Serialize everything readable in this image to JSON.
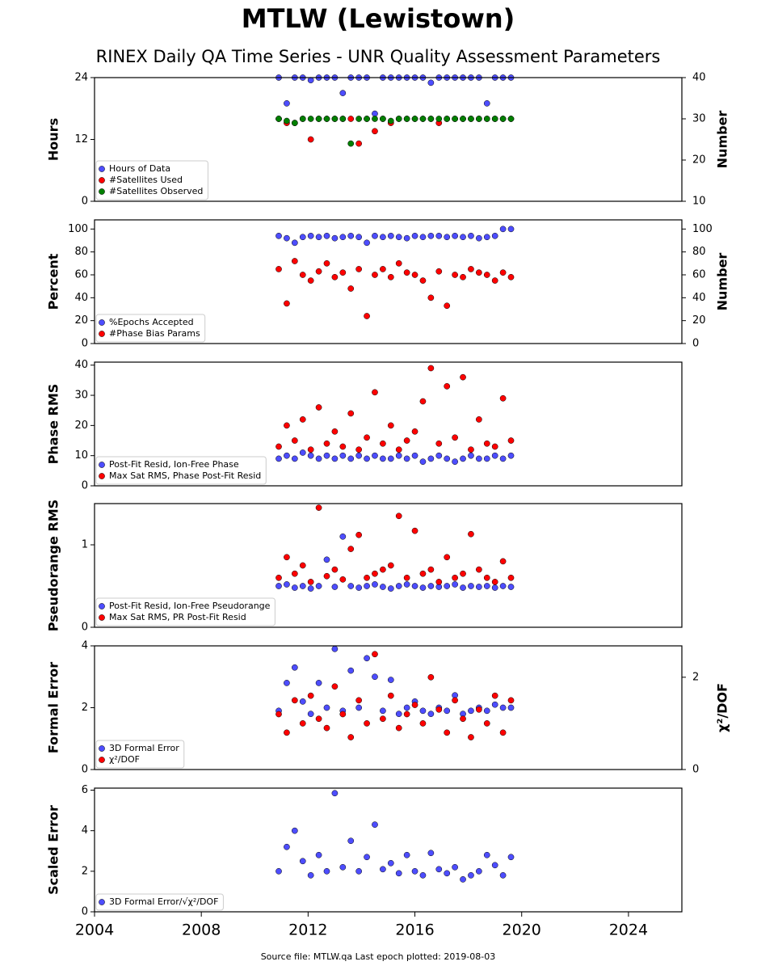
{
  "title": "MTLW (Lewistown)",
  "subtitle": "RINEX Daily QA Time Series - UNR Quality Assessment Parameters",
  "footer": "Source file: MTLW.qa Last epoch plotted: 2019-08-03",
  "chart_data": [
    {
      "type": "scatter",
      "ylabel": "Hours",
      "y2label": "Number",
      "legend": "lower left",
      "x": [
        2010.9,
        2011.2,
        2011.5,
        2011.8,
        2012.1,
        2012.4,
        2012.7,
        2013.0,
        2013.3,
        2013.6,
        2013.9,
        2014.2,
        2014.5,
        2014.8,
        2015.1,
        2015.4,
        2015.7,
        2016.0,
        2016.3,
        2016.6,
        2016.9,
        2017.2,
        2017.5,
        2017.8,
        2018.1,
        2018.4,
        2018.7,
        2019.0,
        2019.3,
        2019.6
      ],
      "xlim": [
        2004,
        2026
      ],
      "ylim": [
        0,
        24
      ],
      "yticks": [
        0,
        12,
        24
      ],
      "y2lim": [
        10,
        40
      ],
      "y2ticks": [
        10,
        20,
        30,
        40
      ],
      "series": [
        {
          "name": "Hours of Data",
          "color": "#4d4dff",
          "values": [
            24,
            19,
            24,
            24,
            23.5,
            24,
            24,
            24,
            21,
            24,
            24,
            24,
            17,
            24,
            24,
            24,
            24,
            24,
            24,
            23,
            24,
            24,
            24,
            24,
            24,
            24,
            19,
            24,
            24,
            24
          ]
        },
        {
          "name": "#Satellites Used",
          "color": "#ff0000",
          "axis": "y2",
          "values": [
            30,
            29,
            29,
            30,
            25,
            30,
            30,
            30,
            30,
            30,
            24,
            30,
            27,
            30,
            29,
            30,
            30,
            30,
            30,
            30,
            29,
            30,
            30,
            30,
            30,
            30,
            30,
            30,
            30,
            30
          ]
        },
        {
          "name": "#Satellites Observed",
          "color": "#008000",
          "axis": "y2",
          "values": [
            30,
            29.5,
            29,
            30,
            30,
            30,
            30,
            30,
            30,
            24,
            30,
            30,
            30,
            30,
            29.5,
            30,
            30,
            30,
            30,
            30,
            30,
            30,
            30,
            30,
            30,
            30,
            30,
            30,
            30,
            30
          ]
        }
      ]
    },
    {
      "type": "scatter",
      "ylabel": "Percent",
      "y2label": "Number",
      "legend": "lower left",
      "x": [
        2010.9,
        2011.2,
        2011.5,
        2011.8,
        2012.1,
        2012.4,
        2012.7,
        2013.0,
        2013.3,
        2013.6,
        2013.9,
        2014.2,
        2014.5,
        2014.8,
        2015.1,
        2015.4,
        2015.7,
        2016.0,
        2016.3,
        2016.6,
        2016.9,
        2017.2,
        2017.5,
        2017.8,
        2018.1,
        2018.4,
        2018.7,
        2019.0,
        2019.3,
        2019.6
      ],
      "xlim": [
        2004,
        2026
      ],
      "ylim": [
        0,
        108
      ],
      "yticks": [
        0,
        20,
        40,
        60,
        80,
        100
      ],
      "y2lim": [
        0,
        108
      ],
      "y2ticks": [
        0,
        20,
        40,
        60,
        80,
        100
      ],
      "series": [
        {
          "name": "%Epochs Accepted",
          "color": "#4d4dff",
          "values": [
            94,
            92,
            88,
            93,
            94,
            93,
            94,
            92,
            93,
            94,
            93,
            88,
            94,
            93,
            94,
            93,
            92,
            94,
            93,
            94,
            94,
            93,
            94,
            93,
            94,
            92,
            93,
            94,
            100,
            100
          ]
        },
        {
          "name": "#Phase Bias Params",
          "color": "#ff0000",
          "axis": "y2",
          "values": [
            65,
            35,
            72,
            60,
            55,
            63,
            70,
            58,
            62,
            48,
            65,
            24,
            60,
            65,
            58,
            70,
            62,
            60,
            55,
            40,
            63,
            33,
            60,
            58,
            65,
            62,
            60,
            55,
            62,
            58
          ]
        }
      ]
    },
    {
      "type": "scatter",
      "ylabel": "Phase RMS",
      "legend": "lower left",
      "x": [
        2010.9,
        2011.2,
        2011.5,
        2011.8,
        2012.1,
        2012.4,
        2012.7,
        2013.0,
        2013.3,
        2013.6,
        2013.9,
        2014.2,
        2014.5,
        2014.8,
        2015.1,
        2015.4,
        2015.7,
        2016.0,
        2016.3,
        2016.6,
        2016.9,
        2017.2,
        2017.5,
        2017.8,
        2018.1,
        2018.4,
        2018.7,
        2019.0,
        2019.3,
        2019.6
      ],
      "xlim": [
        2004,
        2026
      ],
      "ylim": [
        0,
        41
      ],
      "yticks": [
        0,
        10,
        20,
        30,
        40
      ],
      "series": [
        {
          "name": "Post-Fit Resid, Ion-Free Phase",
          "color": "#4d4dff",
          "values": [
            9,
            10,
            9,
            11,
            10,
            9,
            10,
            9,
            10,
            9,
            10,
            9,
            10,
            9,
            9,
            10,
            9,
            10,
            8,
            9,
            10,
            9,
            8,
            9,
            10,
            9,
            9,
            10,
            9,
            10
          ]
        },
        {
          "name": "Max Sat RMS, Phase Post-Fit Resid",
          "color": "#ff0000",
          "values": [
            13,
            20,
            15,
            22,
            12,
            26,
            14,
            18,
            13,
            24,
            12,
            16,
            31,
            14,
            20,
            12,
            15,
            18,
            28,
            39,
            14,
            33,
            16,
            36,
            12,
            22,
            14,
            13,
            29,
            15
          ]
        }
      ]
    },
    {
      "type": "scatter",
      "ylabel": "Pseudorange RMS",
      "legend": "lower left",
      "x": [
        2010.9,
        2011.2,
        2011.5,
        2011.8,
        2012.1,
        2012.4,
        2012.7,
        2013.0,
        2013.3,
        2013.6,
        2013.9,
        2014.2,
        2014.5,
        2014.8,
        2015.1,
        2015.4,
        2015.7,
        2016.0,
        2016.3,
        2016.6,
        2016.9,
        2017.2,
        2017.5,
        2017.8,
        2018.1,
        2018.4,
        2018.7,
        2019.0,
        2019.3,
        2019.6
      ],
      "xlim": [
        2004,
        2026
      ],
      "ylim": [
        0,
        1.5
      ],
      "yticks": [
        0,
        1
      ],
      "series": [
        {
          "name": "Post-Fit Resid, Ion-Free Pseudorange",
          "color": "#4d4dff",
          "values": [
            0.5,
            0.52,
            0.48,
            0.5,
            0.47,
            0.5,
            0.82,
            0.49,
            1.1,
            0.5,
            0.48,
            0.5,
            0.52,
            0.49,
            0.47,
            0.5,
            0.52,
            0.5,
            0.48,
            0.5,
            0.49,
            0.5,
            0.52,
            0.48,
            0.5,
            0.49,
            0.5,
            0.48,
            0.5,
            0.49
          ]
        },
        {
          "name": "Max Sat RMS, PR Post-Fit Resid",
          "color": "#ff0000",
          "values": [
            0.6,
            0.85,
            0.65,
            0.75,
            0.55,
            1.45,
            0.62,
            0.7,
            0.58,
            0.95,
            1.12,
            0.6,
            0.65,
            0.7,
            0.75,
            1.35,
            0.6,
            1.17,
            0.65,
            0.7,
            0.55,
            0.85,
            0.6,
            0.65,
            1.13,
            0.7,
            0.6,
            0.55,
            0.8,
            0.6
          ]
        }
      ]
    },
    {
      "type": "scatter",
      "ylabel": "Formal Error",
      "y2label": "χ²/DOF",
      "legend": "lower left",
      "x": [
        2010.9,
        2011.2,
        2011.5,
        2011.8,
        2012.1,
        2012.4,
        2012.7,
        2013.0,
        2013.3,
        2013.6,
        2013.9,
        2014.2,
        2014.5,
        2014.8,
        2015.1,
        2015.4,
        2015.7,
        2016.0,
        2016.3,
        2016.6,
        2016.9,
        2017.2,
        2017.5,
        2017.8,
        2018.1,
        2018.4,
        2018.7,
        2019.0,
        2019.3,
        2019.6
      ],
      "xlim": [
        2004,
        2026
      ],
      "ylim": [
        0,
        4
      ],
      "yticks": [
        0,
        2,
        4
      ],
      "y2lim": [
        0,
        2.68
      ],
      "y2ticks": [
        0,
        2
      ],
      "series": [
        {
          "name": "3D Formal Error",
          "color": "#4d4dff",
          "values": [
            1.9,
            2.8,
            3.3,
            2.2,
            1.8,
            2.8,
            2.0,
            3.9,
            1.9,
            3.2,
            2.0,
            3.6,
            3.0,
            1.9,
            2.9,
            1.8,
            2.0,
            2.2,
            1.9,
            1.8,
            2.0,
            1.9,
            2.4,
            1.8,
            1.9,
            2.0,
            1.9,
            2.1,
            2.0,
            2.0
          ]
        },
        {
          "name": "χ²/DOF",
          "color": "#ff0000",
          "axis": "y2",
          "values": [
            1.2,
            0.8,
            1.5,
            1.0,
            1.6,
            1.1,
            0.9,
            1.8,
            1.2,
            0.7,
            1.5,
            1.0,
            2.5,
            1.1,
            1.6,
            0.9,
            1.2,
            1.4,
            1.0,
            2.0,
            1.3,
            0.8,
            1.5,
            1.1,
            0.7,
            1.3,
            1.0,
            1.6,
            0.8,
            1.5
          ]
        }
      ]
    },
    {
      "type": "scatter",
      "ylabel": "Scaled Error",
      "legend": "lower left",
      "x": [
        2010.9,
        2011.2,
        2011.5,
        2011.8,
        2012.1,
        2012.4,
        2012.7,
        2013.0,
        2013.3,
        2013.6,
        2013.9,
        2014.2,
        2014.5,
        2014.8,
        2015.1,
        2015.4,
        2015.7,
        2016.0,
        2016.3,
        2016.6,
        2016.9,
        2017.2,
        2017.5,
        2017.8,
        2018.1,
        2018.4,
        2018.7,
        2019.0,
        2019.3,
        2019.6
      ],
      "xlim": [
        2004,
        2026
      ],
      "xticks": [
        2004,
        2008,
        2012,
        2016,
        2020,
        2024
      ],
      "ylim": [
        0,
        6.1
      ],
      "yticks": [
        0,
        2,
        4,
        6
      ],
      "series": [
        {
          "name": "3D Formal Error/√χ²/DOF",
          "color": "#4d4dff",
          "values": [
            2.0,
            3.2,
            4.0,
            2.5,
            1.8,
            2.8,
            2.0,
            5.85,
            2.2,
            3.5,
            2.0,
            2.7,
            4.3,
            2.1,
            2.4,
            1.9,
            2.8,
            2.0,
            1.8,
            2.9,
            2.1,
            1.9,
            2.2,
            1.6,
            1.8,
            2.0,
            2.8,
            2.3,
            1.8,
            2.7
          ]
        }
      ]
    }
  ]
}
